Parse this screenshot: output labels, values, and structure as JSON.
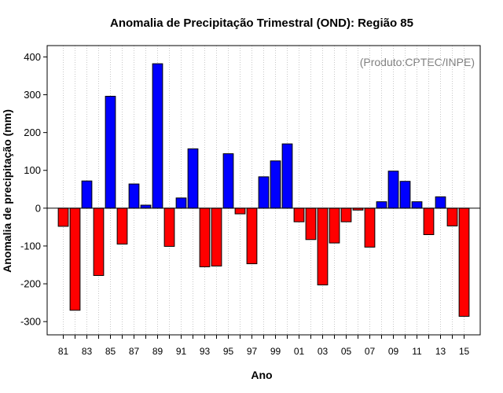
{
  "chart_data": {
    "type": "bar",
    "title": "Anomalia de Precipitação Trimestral (OND): Região 85",
    "xlabel": "Ano",
    "ylabel": "Anomalia de precipitação (mm)",
    "credit": "(Produto:CPTEC/INPE)",
    "ylim": [
      -335,
      430
    ],
    "yticks": [
      -300,
      -200,
      -100,
      0,
      100,
      200,
      300,
      400
    ],
    "categories": [
      "81",
      "82",
      "83",
      "84",
      "85",
      "86",
      "87",
      "88",
      "89",
      "90",
      "91",
      "92",
      "93",
      "94",
      "95",
      "96",
      "97",
      "98",
      "99",
      "00",
      "01",
      "02",
      "03",
      "04",
      "05",
      "06",
      "07",
      "08",
      "09",
      "10",
      "11",
      "12",
      "13",
      "14",
      "15"
    ],
    "xtick_labels": [
      "81",
      "83",
      "85",
      "87",
      "89",
      "91",
      "93",
      "95",
      "97",
      "99",
      "01",
      "03",
      "05",
      "07",
      "09",
      "11",
      "13",
      "15"
    ],
    "values": [
      -48,
      -270,
      72,
      -178,
      296,
      -95,
      64,
      8,
      382,
      -101,
      27,
      157,
      -155,
      -153,
      144,
      -15,
      -147,
      83,
      125,
      170,
      -36,
      -83,
      -203,
      -92,
      -36,
      -5,
      -103,
      17,
      98,
      71,
      17,
      -70,
      30,
      -47,
      -286
    ],
    "positive_color": "#0000ff",
    "negative_color": "#ff0000",
    "grid": true
  }
}
